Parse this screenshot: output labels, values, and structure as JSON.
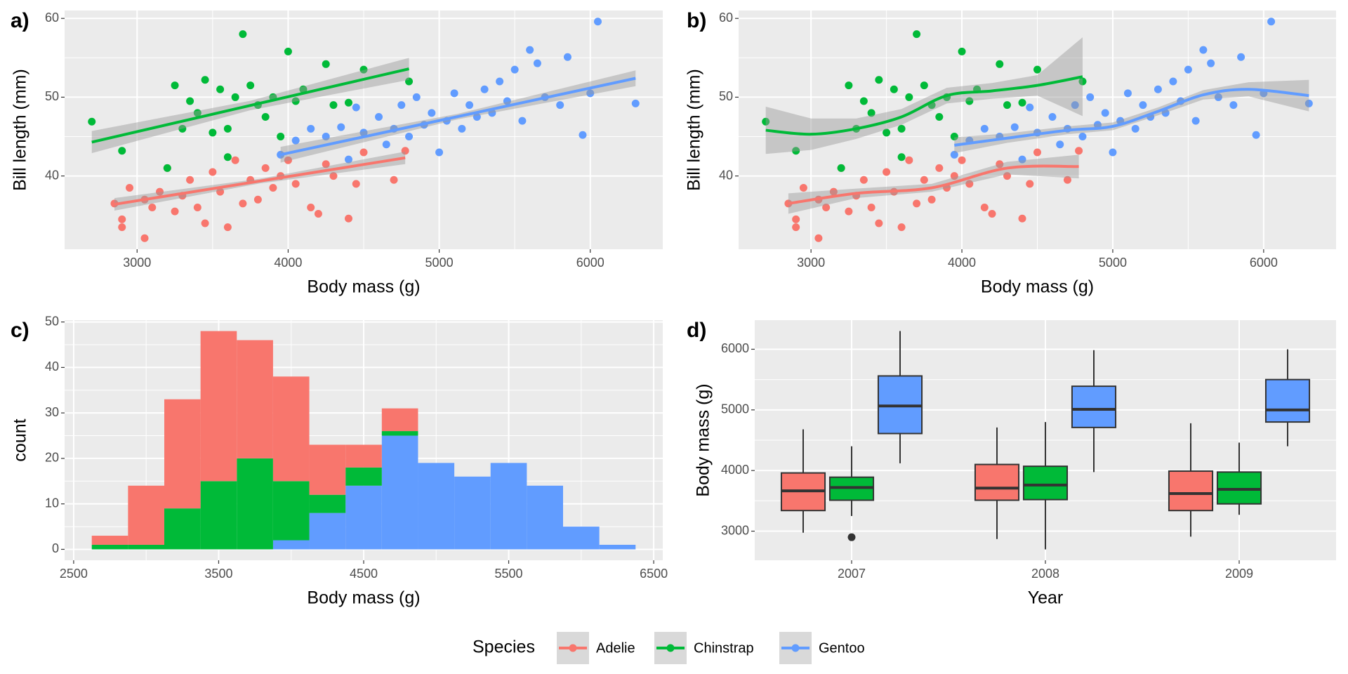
{
  "chart_data": [
    {
      "type": "scatter",
      "tag": "a)",
      "x_label": "Body mass (g)",
      "y_label": "Bill length (mm)",
      "xlim": [
        2520,
        6480
      ],
      "ylim": [
        30.7,
        61.0
      ],
      "xticks": [
        3000,
        4000,
        5000,
        6000
      ],
      "yticks": [
        40,
        50,
        60
      ],
      "grid": true,
      "series": [
        {
          "name": "Adelie",
          "color": "#F8766D",
          "x": [
            2850,
            2900,
            2900,
            2950,
            3050,
            3050,
            3100,
            3150,
            3200,
            3250,
            3300,
            3350,
            3400,
            3450,
            3500,
            3550,
            3600,
            3650,
            3700,
            3750,
            3800,
            3850,
            3900,
            3950,
            4000,
            4050,
            4150,
            4200,
            4250,
            4300,
            4400,
            4450,
            4500,
            4700,
            4775
          ],
          "values": [
            36.5,
            34.5,
            33.5,
            38.5,
            32.1,
            37,
            36,
            38,
            41,
            35.5,
            37.5,
            39.5,
            36,
            34,
            40.5,
            38,
            33.5,
            42,
            36.5,
            39.5,
            37,
            41,
            38.5,
            40,
            42,
            39,
            36,
            35.2,
            41.5,
            40,
            34.6,
            39,
            43,
            39.5,
            43.2
          ]
        },
        {
          "name": "Chinstrap",
          "color": "#00BA38",
          "x": [
            2700,
            2900,
            3200,
            3250,
            3300,
            3350,
            3400,
            3450,
            3500,
            3550,
            3600,
            3600,
            3650,
            3700,
            3750,
            3800,
            3850,
            3900,
            3950,
            4000,
            4050,
            4100,
            4250,
            4300,
            4400,
            4500,
            4800
          ],
          "values": [
            46.9,
            43.2,
            41,
            51.5,
            46,
            49.5,
            48,
            52.2,
            45.5,
            51,
            46,
            42.4,
            50,
            58,
            51.5,
            49,
            47.5,
            50,
            45,
            55.8,
            49.5,
            51,
            54.2,
            49,
            49.3,
            53.5,
            52
          ]
        },
        {
          "name": "Gentoo",
          "color": "#619CFF",
          "x": [
            3950,
            4050,
            4150,
            4250,
            4350,
            4400,
            4450,
            4500,
            4600,
            4650,
            4700,
            4750,
            4800,
            4850,
            4900,
            4950,
            5000,
            5050,
            5100,
            5150,
            5200,
            5250,
            5300,
            5350,
            5400,
            5450,
            5500,
            5550,
            5600,
            5650,
            5700,
            5800,
            5850,
            5950,
            6000,
            6050,
            6300
          ],
          "values": [
            42.7,
            44.5,
            46,
            45,
            46.2,
            42.1,
            48.7,
            45.5,
            47.5,
            44,
            46,
            49,
            45,
            50,
            46.5,
            48,
            43,
            47,
            50.5,
            46,
            49,
            47.5,
            51,
            48,
            52,
            49.5,
            53.5,
            47,
            56,
            54.3,
            50,
            49,
            55.1,
            45.2,
            50.5,
            59.6,
            49.2
          ]
        }
      ],
      "fits": [
        {
          "x": [
            2850,
            3812,
            4775
          ],
          "values": [
            36.4,
            39.35,
            42.3
          ],
          "lower": [
            35.6,
            39.05,
            41.5
          ],
          "upper": [
            37.2,
            39.65,
            43.1
          ]
        },
        {
          "x": [
            2700,
            3750,
            4800
          ],
          "values": [
            44.3,
            48.95,
            53.6
          ],
          "lower": [
            42.9,
            48.35,
            52.2
          ],
          "upper": [
            45.7,
            49.55,
            55.0
          ]
        },
        {
          "x": [
            3950,
            5125,
            6300
          ],
          "values": [
            42.7,
            47.55,
            52.4
          ],
          "lower": [
            41.7,
            47.2,
            51.4
          ],
          "upper": [
            43.7,
            47.9,
            53.4
          ]
        }
      ]
    },
    {
      "type": "scatter",
      "tag": "b)",
      "x_label": "Body mass (g)",
      "y_label": "Bill length (mm)",
      "xlim": [
        2520,
        6480
      ],
      "ylim": [
        30.7,
        61.0
      ],
      "xticks": [
        3000,
        4000,
        5000,
        6000
      ],
      "yticks": [
        40,
        50,
        60
      ],
      "grid": true,
      "series": [
        {
          "name": "Adelie",
          "color": "#F8766D",
          "x": [
            2850,
            2900,
            2900,
            2950,
            3050,
            3050,
            3100,
            3150,
            3200,
            3250,
            3300,
            3350,
            3400,
            3450,
            3500,
            3550,
            3600,
            3650,
            3700,
            3750,
            3800,
            3850,
            3900,
            3950,
            4000,
            4050,
            4150,
            4200,
            4250,
            4300,
            4400,
            4450,
            4500,
            4700,
            4775
          ],
          "values": [
            36.5,
            34.5,
            33.5,
            38.5,
            32.1,
            37,
            36,
            38,
            41,
            35.5,
            37.5,
            39.5,
            36,
            34,
            40.5,
            38,
            33.5,
            42,
            36.5,
            39.5,
            37,
            41,
            38.5,
            40,
            42,
            39,
            36,
            35.2,
            41.5,
            40,
            34.6,
            39,
            43,
            39.5,
            43.2
          ]
        },
        {
          "name": "Chinstrap",
          "color": "#00BA38",
          "x": [
            2700,
            2900,
            3200,
            3250,
            3300,
            3350,
            3400,
            3450,
            3500,
            3550,
            3600,
            3600,
            3650,
            3700,
            3750,
            3800,
            3850,
            3900,
            3950,
            4000,
            4050,
            4100,
            4250,
            4300,
            4400,
            4500,
            4800
          ],
          "values": [
            46.9,
            43.2,
            41,
            51.5,
            46,
            49.5,
            48,
            52.2,
            45.5,
            51,
            46,
            42.4,
            50,
            58,
            51.5,
            49,
            47.5,
            50,
            45,
            55.8,
            49.5,
            51,
            54.2,
            49,
            49.3,
            53.5,
            52
          ]
        },
        {
          "name": "Gentoo",
          "color": "#619CFF",
          "x": [
            3950,
            4050,
            4150,
            4250,
            4350,
            4400,
            4450,
            4500,
            4600,
            4650,
            4700,
            4750,
            4800,
            4850,
            4900,
            4950,
            5000,
            5050,
            5100,
            5150,
            5200,
            5250,
            5300,
            5350,
            5400,
            5450,
            5500,
            5550,
            5600,
            5650,
            5700,
            5800,
            5850,
            5950,
            6000,
            6050,
            6300
          ],
          "values": [
            42.7,
            44.5,
            46,
            45,
            46.2,
            42.1,
            48.7,
            45.5,
            47.5,
            44,
            46,
            49,
            45,
            50,
            46.5,
            48,
            43,
            47,
            50.5,
            46,
            49,
            47.5,
            51,
            48,
            52,
            49.5,
            53.5,
            47,
            56,
            54.3,
            50,
            49,
            55.1,
            45.2,
            50.5,
            59.6,
            49.2
          ]
        }
      ],
      "fits": [
        {
          "x": [
            2850,
            3300,
            3800,
            4300,
            4775
          ],
          "values": [
            36.5,
            37.8,
            38.5,
            41,
            41.2
          ],
          "lower": [
            35.2,
            37.2,
            38.0,
            40.2,
            39.7
          ],
          "upper": [
            37.8,
            38.4,
            39.0,
            41.8,
            42.7
          ]
        },
        {
          "x": [
            2700,
            3000,
            3300,
            3600,
            3900,
            4200,
            4500,
            4800
          ],
          "values": [
            45.8,
            45.3,
            46,
            47.5,
            50.2,
            50.8,
            51.5,
            52.6
          ],
          "lower": [
            42.8,
            43.3,
            44.7,
            46.5,
            49.2,
            49.8,
            50.2,
            47.6
          ],
          "upper": [
            48.8,
            47.3,
            47.3,
            48.5,
            51.2,
            51.8,
            52.8,
            57.6
          ]
        },
        {
          "x": [
            3950,
            4300,
            4700,
            5000,
            5300,
            5600,
            5900,
            6300
          ],
          "values": [
            43.9,
            44.8,
            45.8,
            46.3,
            48.2,
            50.3,
            51,
            50.2
          ],
          "lower": [
            42.9,
            44.2,
            45.3,
            45.8,
            47.7,
            49.7,
            50.1,
            48.2
          ],
          "upper": [
            44.9,
            45.4,
            46.3,
            46.8,
            48.7,
            50.9,
            51.9,
            52.2
          ]
        }
      ]
    },
    {
      "type": "histogram",
      "tag": "c)",
      "x_label": "Body mass (g)",
      "y_label": "count",
      "xlim": [
        2437.5,
        6562.5
      ],
      "ylim": [
        -2.4,
        50.4
      ],
      "xticks": [
        2500,
        3500,
        4500,
        5500,
        6500
      ],
      "yticks": [
        0,
        10,
        20,
        30,
        40,
        50
      ],
      "grid": true,
      "bins": [
        2625,
        2875,
        3125,
        3375,
        3625,
        3875,
        4125,
        4375,
        4625,
        4875,
        5125,
        5375,
        5625,
        5875,
        6125,
        6375
      ],
      "series": [
        {
          "name": "Adelie",
          "color": "#F8766D",
          "values": [
            2,
            13,
            24,
            33,
            26,
            23,
            11,
            5,
            5,
            0,
            0,
            0,
            0,
            0,
            0
          ]
        },
        {
          "name": "Chinstrap",
          "color": "#00BA38",
          "values": [
            1,
            1,
            9,
            15,
            20,
            13,
            4,
            4,
            1,
            0,
            0,
            0,
            0,
            0,
            0
          ]
        },
        {
          "name": "Gentoo",
          "color": "#619CFF",
          "values": [
            0,
            0,
            0,
            0,
            0,
            2,
            8,
            14,
            25,
            19,
            16,
            19,
            14,
            5,
            1
          ]
        }
      ]
    },
    {
      "type": "box",
      "tag": "d)",
      "x_label": "Year",
      "y_label": "Body mass (g)",
      "ylim": [
        2520,
        6480
      ],
      "yticks": [
        3000,
        4000,
        5000,
        6000
      ],
      "grid": true,
      "categories": [
        "2007",
        "2008",
        "2009"
      ],
      "series": [
        {
          "name": "Adelie",
          "color": "#F8766D",
          "min": [
            2975,
            2870,
            2910
          ],
          "q1": [
            3340,
            3510,
            3340
          ],
          "median": [
            3665,
            3710,
            3620
          ],
          "q3": [
            3960,
            4100,
            3990
          ],
          "max": [
            4680,
            4710,
            4780
          ],
          "outliers": [
            [],
            [],
            []
          ]
        },
        {
          "name": "Chinstrap",
          "color": "#00BA38",
          "min": [
            3250,
            2700,
            3270
          ],
          "q1": [
            3510,
            3520,
            3450
          ],
          "median": [
            3720,
            3760,
            3690
          ],
          "q3": [
            3890,
            4070,
            3975
          ],
          "max": [
            4400,
            4800,
            4460
          ],
          "outliers": [
            [
              2900
            ],
            [],
            []
          ]
        },
        {
          "name": "Gentoo",
          "color": "#619CFF",
          "min": [
            4120,
            3975,
            4400
          ],
          "q1": [
            4610,
            4710,
            4800
          ],
          "median": [
            5065,
            5010,
            5000
          ],
          "q3": [
            5560,
            5390,
            5500
          ],
          "max": [
            6300,
            5985,
            6000
          ],
          "outliers": [
            [],
            [],
            []
          ]
        }
      ]
    }
  ],
  "legend": {
    "title": "Species",
    "position": "bottom"
  }
}
